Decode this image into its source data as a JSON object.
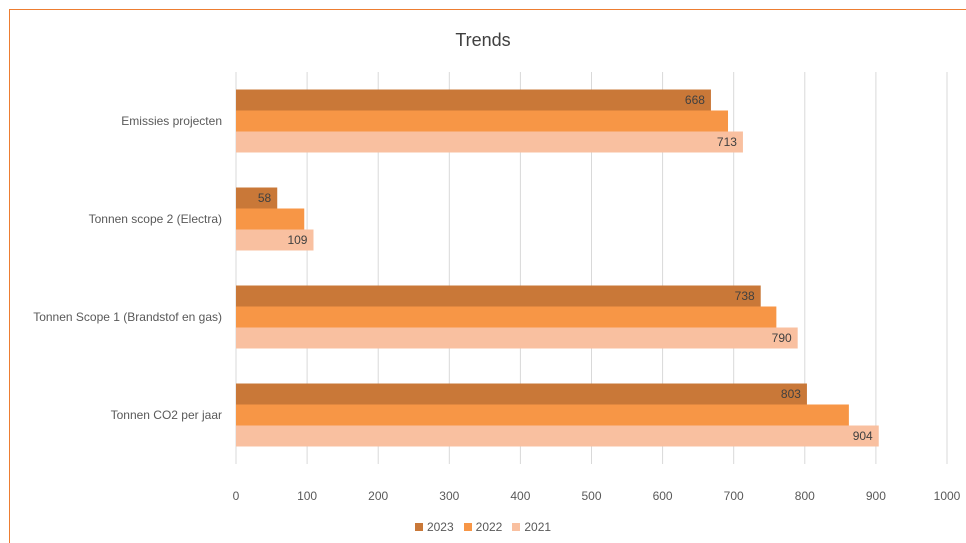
{
  "chart_data": {
    "type": "bar",
    "orientation": "horizontal",
    "title": "Trends",
    "categories": [
      "Emissies projecten",
      "Tonnen scope 2 (Electra)",
      "Tonnen Scope 1 (Brandstof en gas)",
      "Tonnen CO2 per jaar"
    ],
    "series": [
      {
        "name": "2023",
        "color": "#c97838",
        "values": [
          668,
          58,
          738,
          803
        ],
        "labels": [
          "668",
          "58",
          "738",
          "803"
        ]
      },
      {
        "name": "2022",
        "color": "#f79646",
        "values": [
          692,
          96,
          760,
          862
        ],
        "labels": [
          "",
          "",
          "",
          ""
        ]
      },
      {
        "name": "2021",
        "color": "#f9c0a0",
        "values": [
          713,
          109,
          790,
          904
        ],
        "labels": [
          "713",
          "109",
          "790",
          "904"
        ]
      }
    ],
    "xlim": [
      0,
      1000
    ],
    "xticks": [
      "0",
      "100",
      "200",
      "300",
      "400",
      "500",
      "600",
      "700",
      "800",
      "900",
      "1000"
    ],
    "grid": true,
    "legend": "bottom"
  }
}
